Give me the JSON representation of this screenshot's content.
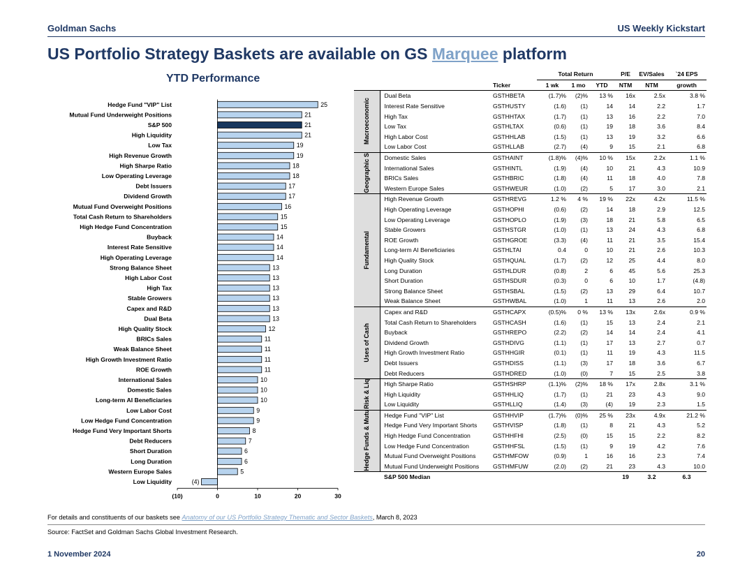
{
  "header": {
    "brand": "Goldman Sachs",
    "report": "US Weekly Kickstart"
  },
  "title": {
    "before": "US Portfolio Strategy Baskets are available on GS ",
    "link": "Marquee",
    "after": " platform"
  },
  "colors": {
    "navy": "#1f3864",
    "bar": "#b7d3ee",
    "highlight": "#17375e",
    "link": "#7fa2c8"
  },
  "chart_data": {
    "type": "bar",
    "orientation": "horizontal",
    "title": "YTD Performance",
    "categories": [
      "Hedge Fund \"VIP\" List",
      "Mutual Fund Underweight Positions",
      "S&P 500",
      "High Liquidity",
      "Low Tax",
      "High Revenue Growth",
      "High Sharpe Ratio",
      "Low Operating Leverage",
      "Debt Issuers",
      "Dividend Growth",
      "Mutual Fund Overweight Positions",
      "Total Cash Return to Shareholders",
      "High Hedge Fund Concentration",
      "Buyback",
      "Interest Rate Sensitive",
      "High Operating Leverage",
      "Strong Balance Sheet",
      "High Labor Cost",
      "High Tax",
      "Stable Growers",
      "Capex and R&D",
      "Dual Beta",
      "High Quality Stock",
      "BRICs Sales",
      "Weak Balance Sheet",
      "High Growth Investment Ratio",
      "ROE Growth",
      "International Sales",
      "Domestic Sales",
      "Long-term AI Beneficiaries",
      "Low Labor Cost",
      "Low Hedge Fund Concentration",
      "Hedge Fund Very Important Shorts",
      "Debt Reducers",
      "Short Duration",
      "Long Duration",
      "Western Europe Sales",
      "Low Liquidity"
    ],
    "values": [
      25,
      21,
      21,
      21,
      19,
      19,
      18,
      18,
      17,
      17,
      16,
      15,
      15,
      14,
      14,
      14,
      13,
      13,
      13,
      13,
      13,
      13,
      12,
      11,
      11,
      11,
      11,
      10,
      10,
      10,
      9,
      9,
      8,
      7,
      6,
      6,
      5,
      -4
    ],
    "value_labels": [
      "25",
      "21",
      "21",
      "21",
      "19",
      "19",
      "18",
      "18",
      "17",
      "17",
      "16",
      "15",
      "15",
      "14",
      "14",
      "14",
      "13",
      "13",
      "13",
      "13",
      "13",
      "13",
      "12",
      "11",
      "11",
      "11",
      "11",
      "10",
      "10",
      "10",
      "9",
      "9",
      "8",
      "7",
      "6",
      "6",
      "5",
      "(4)"
    ],
    "highlight": "S&P 500",
    "xlim": [
      -10,
      30
    ],
    "ticks": [
      -10,
      0,
      10,
      20,
      30
    ],
    "tick_labels": [
      "(10)",
      "0",
      "10",
      "20",
      "30"
    ]
  },
  "table": {
    "header_group": {
      "total_return": "Total Return",
      "pe": "P/E",
      "ev": "EV/Sales",
      "eps": "`24 EPS"
    },
    "columns": [
      "Ticker",
      "1 wk",
      "1 mo",
      "YTD",
      "NTM",
      "NTM",
      "growth"
    ],
    "groups": [
      {
        "name": "Macroeconomic",
        "rows": [
          [
            "Dual Beta",
            "GSTHBETA",
            "(1.7)%",
            "(2)%",
            "13 %",
            "16x",
            "2.5x",
            "3.8 %"
          ],
          [
            "Interest Rate Sensitive",
            "GSTHUSTY",
            "(1.6)",
            "(1)",
            "14",
            "14",
            "2.2",
            "1.7"
          ],
          [
            "High Tax",
            "GSTHHTAX",
            "(1.7)",
            "(1)",
            "13",
            "16",
            "2.2",
            "7.0"
          ],
          [
            "Low Tax",
            "GSTHLTAX",
            "(0.6)",
            "(1)",
            "19",
            "18",
            "3.6",
            "8.4"
          ],
          [
            "High Labor Cost",
            "GSTHHLAB",
            "(1.5)",
            "(1)",
            "13",
            "19",
            "3.2",
            "6.6"
          ],
          [
            "Low Labor Cost",
            "GSTHLLAB",
            "(2.7)",
            "(4)",
            "9",
            "15",
            "2.1",
            "6.8"
          ]
        ]
      },
      {
        "name": "Geographic Sales",
        "rows": [
          [
            "Domestic Sales",
            "GSTHAINT",
            "(1.8)%",
            "(4)%",
            "10 %",
            "15x",
            "2.2x",
            "1.1 %"
          ],
          [
            "International Sales",
            "GSTHINTL",
            "(1.9)",
            "(4)",
            "10",
            "21",
            "4.3",
            "10.9"
          ],
          [
            "BRICs Sales",
            "GSTHBRIC",
            "(1.8)",
            "(4)",
            "11",
            "18",
            "4.0",
            "7.8"
          ],
          [
            "Western Europe Sales",
            "GSTHWEUR",
            "(1.0)",
            "(2)",
            "5",
            "17",
            "3.0",
            "2.1"
          ]
        ]
      },
      {
        "name": "Fundamental",
        "rows": [
          [
            "High Revenue Growth",
            "GSTHREVG",
            "1.2 %",
            "4 %",
            "19 %",
            "22x",
            "4.2x",
            "11.5 %"
          ],
          [
            "High Operating Leverage",
            "GSTHOPHI",
            "(0.6)",
            "(2)",
            "14",
            "18",
            "2.9",
            "12.5"
          ],
          [
            "Low Operating Leverage",
            "GSTHOPLO",
            "(1.9)",
            "(3)",
            "18",
            "21",
            "5.8",
            "6.5"
          ],
          [
            "Stable Growers",
            "GSTHSTGR",
            "(1.0)",
            "(1)",
            "13",
            "24",
            "4.3",
            "6.8"
          ],
          [
            "ROE Growth",
            "GSTHGROE",
            "(3.3)",
            "(4)",
            "11",
            "21",
            "3.5",
            "15.4"
          ],
          [
            "Long-term AI Beneficiaries",
            "GSTHLTAI",
            "0.4",
            "0",
            "10",
            "21",
            "2.6",
            "10.3"
          ],
          [
            "High Quality Stock",
            "GSTHQUAL",
            "(1.7)",
            "(2)",
            "12",
            "25",
            "4.4",
            "8.0"
          ],
          [
            "Long Duration",
            "GSTHLDUR",
            "(0.8)",
            "2",
            "6",
            "45",
            "5.6",
            "25.3"
          ],
          [
            "Short Duration",
            "GSTHSDUR",
            "(0.3)",
            "0",
            "6",
            "10",
            "1.7",
            "(4.8)"
          ],
          [
            "Strong Balance Sheet",
            "GSTHSBAL",
            "(1.5)",
            "(2)",
            "13",
            "29",
            "6.4",
            "10.7"
          ],
          [
            "Weak Balance Sheet",
            "GSTHWBAL",
            "(1.0)",
            "1",
            "11",
            "13",
            "2.6",
            "2.0"
          ]
        ]
      },
      {
        "name": "Uses of Cash",
        "rows": [
          [
            "Capex and R&D",
            "GSTHCAPX",
            "(0.5)%",
            "0 %",
            "13 %",
            "13x",
            "2.6x",
            "0.9 %"
          ],
          [
            "Total Cash Return to Shareholders",
            "GSTHCASH",
            "(1.6)",
            "(1)",
            "15",
            "13",
            "2.4",
            "2.1"
          ],
          [
            "Buyback",
            "GSTHREPO",
            "(2.2)",
            "(2)",
            "14",
            "14",
            "2.4",
            "4.1"
          ],
          [
            "Dividend Growth",
            "GSTHDIVG",
            "(1.1)",
            "(1)",
            "17",
            "13",
            "2.7",
            "0.7"
          ],
          [
            "High Growth Investment Ratio",
            "GSTHHGIR",
            "(0.1)",
            "(1)",
            "11",
            "19",
            "4.3",
            "11.5"
          ],
          [
            "Debt Issuers",
            "GSTHDISS",
            "(1.1)",
            "(3)",
            "17",
            "18",
            "3.6",
            "6.7"
          ],
          [
            "Debt Reducers",
            "GSTHDRED",
            "(1.0)",
            "(0)",
            "7",
            "15",
            "2.5",
            "3.8"
          ]
        ]
      },
      {
        "name": "Risk & Liquidity",
        "rows": [
          [
            "High Sharpe Ratio",
            "GSTHSHRP",
            "(1.1)%",
            "(2)%",
            "18 %",
            "17x",
            "2.8x",
            "3.1 %"
          ],
          [
            "High Liquidity",
            "GSTHHLIQ",
            "(1.7)",
            "(1)",
            "21",
            "23",
            "4.3",
            "9.0"
          ],
          [
            "Low Liquidity",
            "GSTHLLIQ",
            "(1.4)",
            "(3)",
            "(4)",
            "19",
            "2.3",
            "1.5"
          ]
        ]
      },
      {
        "name": "Hedge Funds & Mutual Funds",
        "rows": [
          [
            "Hedge Fund \"VIP\" List",
            "GSTHHVIP",
            "(1.7)%",
            "(0)%",
            "25 %",
            "23x",
            "4.9x",
            "21.2 %"
          ],
          [
            "Hedge Fund Very Important Shorts",
            "GSTHVISP",
            "(1.8)",
            "(1)",
            "8",
            "21",
            "4.3",
            "5.2"
          ],
          [
            "High Hedge Fund Concentration",
            "GSTHHFHI",
            "(2.5)",
            "(0)",
            "15",
            "15",
            "2.2",
            "8.2"
          ],
          [
            "Low Hedge Fund Concentration",
            "GSTHHFSL",
            "(1.5)",
            "(1)",
            "9",
            "19",
            "4.2",
            "7.6"
          ],
          [
            "Mutual Fund Overweight Positions",
            "GSTHMFOW",
            "(0.9)",
            "1",
            "16",
            "16",
            "2.3",
            "7.4"
          ],
          [
            "Mutual Fund Underweight Positions",
            "GSTHMFUW",
            "(2.0)",
            "(2)",
            "21",
            "23",
            "4.3",
            "10.0"
          ]
        ]
      }
    ],
    "median": {
      "label": "S&P 500 Median",
      "pe": "19",
      "ev": "3.2",
      "eps": "6.3"
    }
  },
  "footer": {
    "details_prefix": "For details and constituents of our baskets see ",
    "details_link": "Anatomy of our US Portfolio Strategy Thematic and Sector Baskets",
    "details_suffix": ", March 8, 2023",
    "source": "Source: FactSet and Goldman Sachs Global Investment Research.",
    "date": "1 November 2024",
    "page": "20"
  }
}
